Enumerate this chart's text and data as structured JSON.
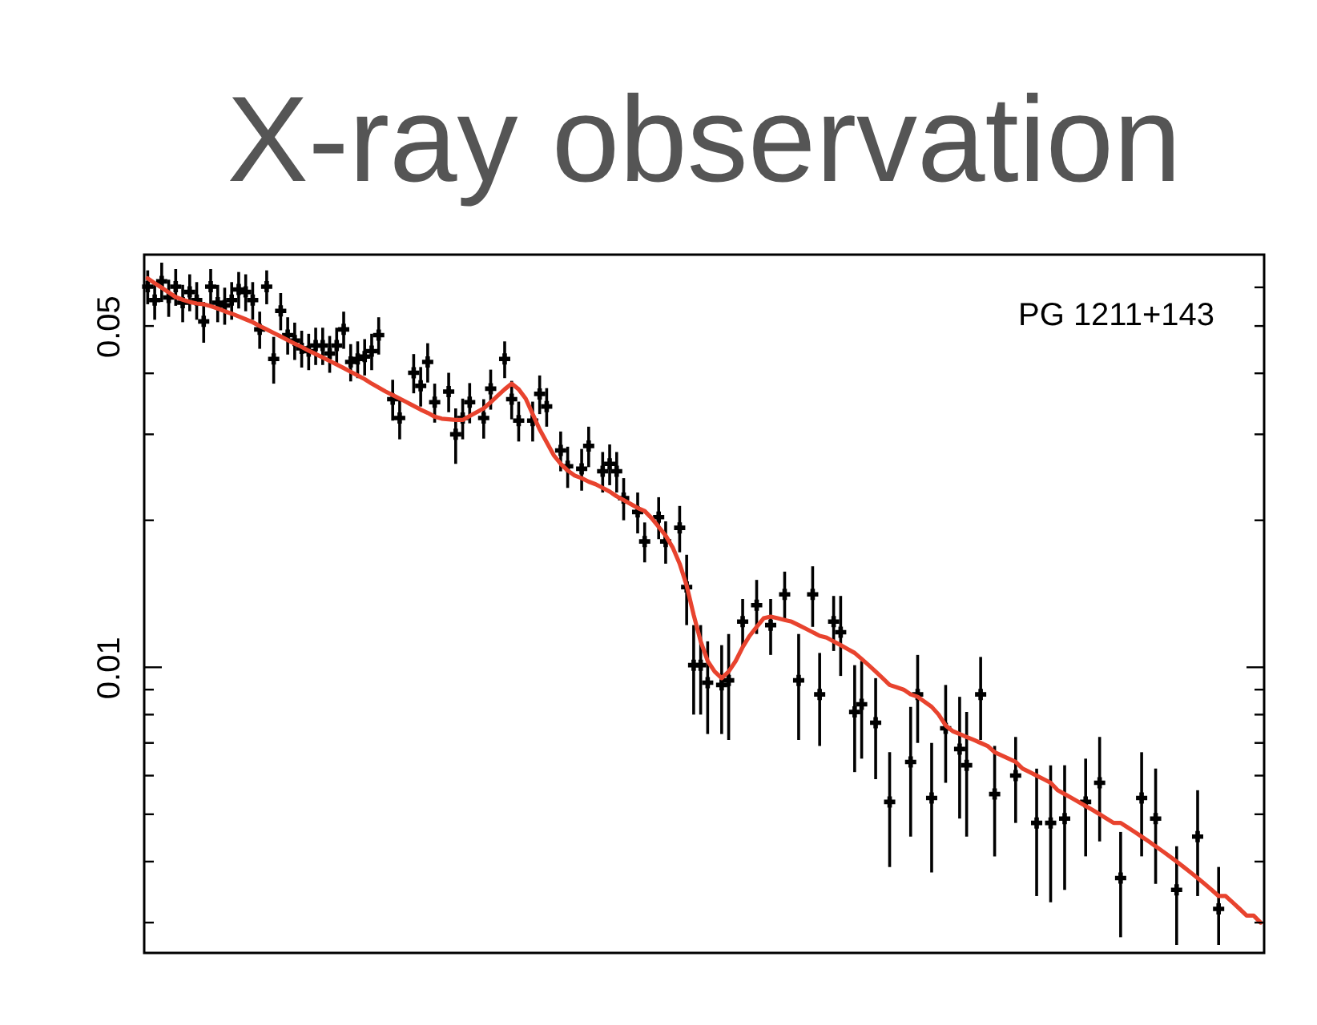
{
  "chart_data": {
    "type": "scatter",
    "title": "X-ray observation",
    "categories": [
      null,
      null,
      null,
      null,
      null,
      null,
      null,
      null,
      null,
      null,
      null,
      null,
      null,
      null,
      null,
      null,
      null,
      null,
      null,
      null,
      null,
      null,
      null,
      null,
      null,
      null,
      null,
      null,
      null,
      null,
      null,
      null,
      null,
      null,
      null,
      null,
      null,
      null,
      null,
      null,
      null,
      null,
      null,
      null,
      null,
      null,
      null,
      null,
      null,
      null,
      null,
      null,
      null,
      null,
      null,
      null,
      null,
      null,
      null,
      null,
      null,
      null,
      null,
      null,
      null,
      null,
      null,
      null,
      null,
      null,
      null,
      null,
      null,
      null,
      null,
      null,
      null,
      null,
      null,
      null,
      null,
      null,
      null,
      null,
      null,
      null,
      null,
      null,
      null,
      null,
      null,
      null,
      null,
      null,
      null,
      null,
      null,
      null,
      null,
      null,
      null,
      null,
      null,
      null,
      null,
      null,
      null,
      null,
      null,
      null,
      null,
      null,
      null,
      null,
      null,
      null,
      null,
      null,
      null,
      null,
      null,
      null,
      null,
      null,
      null,
      null,
      null,
      null,
      null,
      null,
      null,
      null,
      null,
      null,
      null,
      null,
      null,
      null,
      null,
      null,
      null,
      null,
      null,
      null,
      null,
      null,
      null,
      null,
      null,
      null,
      null,
      null,
      null,
      null,
      null,
      null,
      null,
      null,
      null,
      null
    ],
    "series": [
      {
        "color": "#000000",
        "marker": "cross",
        "values": [
          0.0602,
          0.0565,
          0.0617,
          0.0572,
          0.0602,
          0.0558,
          0.0587,
          0.0565,
          0.0511,
          0.0602,
          0.0558,
          0.0551,
          0.0565,
          0.0594,
          0.0587,
          0.0565,
          0.0492,
          0.0602,
          0.0428,
          0.0537,
          0.0479,
          0.0467,
          0.045,
          0.0444,
          0.0456,
          0.0456,
          0.0439,
          0.0456,
          0.0492,
          0.0422,
          0.0428,
          0.0433,
          0.0444,
          0.0479,
          null,
          0.0354,
          0.0324,
          null,
          0.0401,
          0.0377,
          0.0422,
          0.0349,
          null,
          0.0367,
          0.03,
          0.0324,
          0.0349,
          null,
          0.0324,
          0.0372,
          null,
          0.0428,
          0.0354,
          0.032,
          null,
          0.032,
          0.0363,
          0.0342,
          null,
          0.0278,
          0.0258,
          null,
          0.0255,
          0.0284,
          null,
          0.0252,
          0.0261,
          0.0252,
          0.0222,
          null,
          0.0208,
          0.0181,
          null,
          0.0203,
          0.0181,
          null,
          0.0193,
          0.0146,
          0.0101,
          0.0101,
          0.0093,
          null,
          0.0092,
          0.0094,
          null,
          0.0124,
          null,
          0.0134,
          null,
          0.0122,
          null,
          0.0141,
          null,
          0.0094,
          null,
          0.0141,
          0.0088,
          null,
          0.0124,
          0.0118,
          null,
          0.0081,
          0.0084,
          null,
          0.0077,
          null,
          0.0053,
          null,
          null,
          0.0064,
          0.0088,
          null,
          0.0054,
          null,
          0.0075,
          null,
          0.0068,
          0.0063,
          null,
          0.0088,
          null,
          0.0055,
          null,
          null,
          0.006,
          null,
          null,
          0.0048,
          null,
          0.0048,
          null,
          0.0049,
          null,
          null,
          0.0053,
          null,
          0.0058,
          null,
          null,
          0.0037,
          null,
          null,
          0.0054,
          null,
          0.0049,
          null,
          null,
          0.0035,
          null,
          null,
          0.0045,
          null,
          null,
          0.0032,
          null,
          null,
          null,
          null,
          null,
          null
        ],
        "errors": [
          0.0048,
          0.005,
          0.0057,
          0.005,
          0.0052,
          0.0049,
          0.0051,
          0.005,
          0.0049,
          0.0052,
          0.0049,
          0.0048,
          0.005,
          0.0051,
          0.0051,
          0.005,
          0.0043,
          0.0048,
          0.0047,
          0.0047,
          0.0042,
          0.0041,
          0.0039,
          0.0038,
          0.004,
          0.004,
          0.0038,
          0.004,
          0.0043,
          0.0037,
          0.0037,
          0.0037,
          0.0038,
          0.0042,
          null,
          0.0034,
          0.0031,
          null,
          0.0037,
          0.0035,
          0.0039,
          0.0032,
          null,
          0.0034,
          0.0039,
          0.0031,
          0.0033,
          null,
          0.003,
          0.0035,
          null,
          0.0037,
          0.0032,
          0.003,
          null,
          0.003,
          0.0033,
          0.0031,
          null,
          0.0026,
          0.0025,
          null,
          0.0025,
          0.0027,
          null,
          0.0024,
          0.0025,
          0.0024,
          0.0022,
          null,
          0.002,
          0.0017,
          null,
          0.002,
          0.0018,
          null,
          0.0021,
          0.0024,
          0.0021,
          0.0021,
          0.002,
          null,
          0.0019,
          0.0023,
          null,
          0.0014,
          null,
          0.0017,
          null,
          0.0016,
          null,
          0.0016,
          null,
          0.0023,
          null,
          0.002,
          0.0019,
          null,
          0.0016,
          0.0022,
          null,
          0.002,
          0.0019,
          null,
          0.0018,
          null,
          0.0014,
          null,
          null,
          0.0019,
          0.0018,
          null,
          0.0016,
          null,
          0.0017,
          null,
          0.0019,
          0.0018,
          null,
          0.0017,
          null,
          0.0014,
          null,
          null,
          0.0012,
          null,
          null,
          0.0014,
          null,
          0.0015,
          null,
          0.0014,
          null,
          null,
          0.0012,
          null,
          0.0014,
          null,
          null,
          [
            0.0028,
            0.0046
          ],
          null,
          null,
          0.0013,
          null,
          0.0013,
          null,
          null,
          [
            0.0027,
            0.0043
          ],
          null,
          null,
          0.0011,
          null,
          null,
          [
            0.0027,
            0.0039
          ],
          null,
          null,
          null,
          null,
          null,
          null
        ]
      },
      {
        "type": "line",
        "color": "#e8432e",
        "values": [
          0.0626,
          0.0612,
          0.0599,
          0.0586,
          0.0573,
          0.0566,
          0.056,
          0.0556,
          0.0554,
          0.0549,
          0.0543,
          0.0536,
          0.053,
          0.0523,
          0.0516,
          0.0509,
          0.05,
          0.0492,
          0.0484,
          0.0476,
          0.0468,
          0.046,
          0.0453,
          0.0445,
          0.0438,
          0.0431,
          0.0424,
          0.0417,
          0.041,
          0.0403,
          0.0396,
          0.0389,
          0.0381,
          0.0374,
          0.0367,
          0.0361,
          0.0355,
          0.0349,
          0.0343,
          0.0337,
          0.0332,
          0.0326,
          0.0323,
          0.0322,
          0.0321,
          0.0321,
          0.0327,
          0.0333,
          0.0339,
          0.0349,
          0.036,
          0.0371,
          0.0381,
          0.0371,
          0.0355,
          0.033,
          0.0307,
          0.0289,
          0.0272,
          0.0261,
          0.0253,
          0.0247,
          0.0244,
          0.024,
          0.0237,
          0.0233,
          0.0229,
          0.0224,
          0.022,
          0.0216,
          0.0212,
          0.0209,
          0.0202,
          0.0194,
          0.0186,
          0.0176,
          0.0163,
          0.0147,
          0.0128,
          0.0113,
          0.0103,
          0.0098,
          0.0095,
          0.0098,
          0.0103,
          0.011,
          0.0116,
          0.0121,
          0.0126,
          0.0127,
          0.0126,
          0.0125,
          0.0124,
          0.0122,
          0.012,
          0.0118,
          0.0116,
          0.0115,
          0.0113,
          0.0111,
          0.0109,
          0.0107,
          0.0104,
          0.0101,
          0.0098,
          0.0095,
          0.0092,
          0.0091,
          0.009,
          0.0088,
          0.0087,
          0.0085,
          0.0083,
          0.008,
          0.0076,
          0.0074,
          0.0073,
          0.0072,
          0.0071,
          0.007,
          0.0069,
          0.0067,
          0.0066,
          0.0065,
          0.0064,
          0.0062,
          0.0061,
          0.006,
          0.0059,
          0.0058,
          0.0056,
          0.0055,
          0.0054,
          0.0053,
          0.0052,
          0.0051,
          0.005,
          0.0049,
          0.0048,
          0.0048,
          0.0047,
          0.0046,
          0.0045,
          0.0044,
          0.0043,
          0.0042,
          0.0041,
          0.004,
          0.0039,
          0.0038,
          0.0037,
          0.0036,
          0.0035,
          0.0034,
          0.0034,
          0.0033,
          0.0032,
          0.0031,
          0.0031,
          0.003
        ]
      }
    ],
    "log": true,
    "ylim": [
      0.0026,
      0.07
    ],
    "yticks": [
      {
        "value": 0.003,
        "label": null
      },
      {
        "value": 0.004,
        "label": null
      },
      {
        "value": 0.005,
        "label": null
      },
      {
        "value": 0.006,
        "label": null
      },
      {
        "value": 0.007,
        "label": null
      },
      {
        "value": 0.008,
        "label": null
      },
      {
        "value": 0.009,
        "label": null
      },
      0.01,
      {
        "value": 0.02,
        "label": null
      },
      {
        "value": 0.03,
        "label": null
      },
      {
        "value": 0.04,
        "label": null
      },
      0.05,
      {
        "value": 0.06,
        "label": null
      }
    ],
    "tick_labels": "y",
    "annotations": [
      "PG 1211+143"
    ]
  }
}
